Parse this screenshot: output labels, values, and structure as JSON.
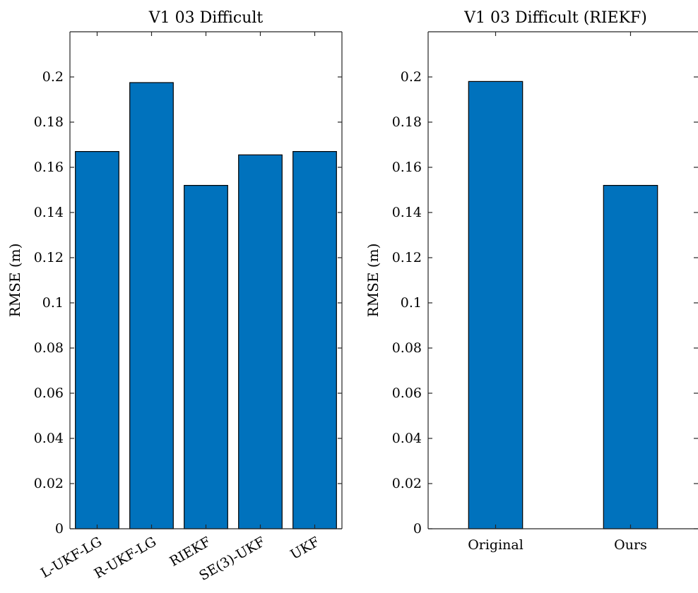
{
  "chart_data": [
    {
      "type": "bar",
      "title": "V1 03 Difficult",
      "ylabel": "RMSE (m)",
      "xlabel": "",
      "categories": [
        "L-UKF-LG",
        "R-UKF-LG",
        "RIEKF",
        "SE(3)-UKF",
        "UKF"
      ],
      "values": [
        0.167,
        0.1975,
        0.152,
        0.1655,
        0.167
      ],
      "ylim": [
        0,
        0.22
      ],
      "yticks": [
        0,
        0.02,
        0.04,
        0.06,
        0.08,
        0.1,
        0.12,
        0.14,
        0.16,
        0.18,
        0.2
      ],
      "ytick_labels": [
        "0",
        "0.02",
        "0.04",
        "0.06",
        "0.08",
        "0.1",
        "0.12",
        "0.14",
        "0.16",
        "0.18",
        "0.2"
      ],
      "xtick_rotation": 30,
      "bar_color": "#0072BD",
      "grid": false,
      "box": true
    },
    {
      "type": "bar",
      "title": "V1 03 Difficult (RIEKF)",
      "ylabel": "RMSE (m)",
      "xlabel": "",
      "categories": [
        "Original",
        "Ours"
      ],
      "values": [
        0.198,
        0.152
      ],
      "ylim": [
        0,
        0.22
      ],
      "yticks": [
        0,
        0.02,
        0.04,
        0.06,
        0.08,
        0.1,
        0.12,
        0.14,
        0.16,
        0.18,
        0.2
      ],
      "ytick_labels": [
        "0",
        "0.02",
        "0.04",
        "0.06",
        "0.08",
        "0.1",
        "0.12",
        "0.14",
        "0.16",
        "0.18",
        "0.2"
      ],
      "xtick_rotation": 0,
      "bar_color": "#0072BD",
      "grid": false,
      "box": true
    }
  ]
}
